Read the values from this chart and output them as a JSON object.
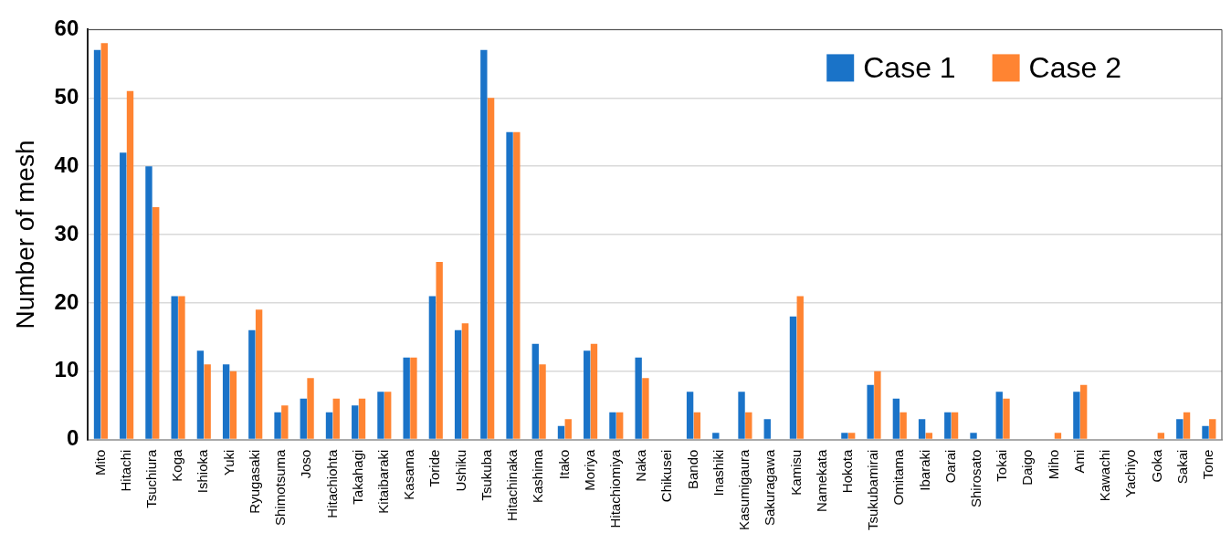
{
  "chart_data": {
    "type": "bar",
    "ylabel": "Number of mesh",
    "categories": [
      "Mito",
      "Hitachi",
      "Tsuchiura",
      "Koga",
      "Ishioka",
      "Yuki",
      "Ryugasaki",
      "Shimotsuma",
      "Joso",
      "Hitachiohta",
      "Takahagi",
      "Kitaibaraki",
      "Kasama",
      "Toride",
      "Ushiku",
      "Tsukuba",
      "Hitachinaka",
      "Kashima",
      "Itako",
      "Moriya",
      "Hitachiomiya",
      "Naka",
      "Chikusei",
      "Bando",
      "Inashiki",
      "Kasumigaura",
      "Sakuragawa",
      "Kamisu",
      "Namekata",
      "Hokota",
      "Tsukubamirai",
      "Omitama",
      "Ibaraki",
      "Oarai",
      "Shirosato",
      "Tokai",
      "Daigo",
      "Miho",
      "Ami",
      "Kawachi",
      "Yachiyo",
      "Goka",
      "Sakai",
      "Tone"
    ],
    "series": [
      {
        "name": "Case 1",
        "color": "#1a73c8",
        "values": [
          57,
          42,
          40,
          21,
          13,
          11,
          16,
          4,
          6,
          4,
          5,
          7,
          12,
          21,
          16,
          57,
          45,
          14,
          2,
          13,
          4,
          12,
          0,
          7,
          1,
          7,
          3,
          18,
          0,
          1,
          8,
          6,
          3,
          4,
          1,
          7,
          0,
          0,
          7,
          0,
          0,
          0,
          3,
          2
        ]
      },
      {
        "name": "Case 2",
        "color": "#ff8432",
        "values": [
          58,
          51,
          34,
          21,
          11,
          10,
          19,
          5,
          9,
          6,
          6,
          7,
          12,
          26,
          17,
          50,
          45,
          11,
          3,
          14,
          4,
          9,
          0,
          4,
          0,
          4,
          0,
          21,
          0,
          1,
          10,
          4,
          1,
          4,
          0,
          6,
          0,
          1,
          8,
          0,
          0,
          1,
          4,
          3
        ]
      }
    ],
    "ylim": [
      0,
      60
    ],
    "yticks": [
      0,
      10,
      20,
      30,
      40,
      50,
      60
    ],
    "grid": "y",
    "legend": "top right"
  }
}
